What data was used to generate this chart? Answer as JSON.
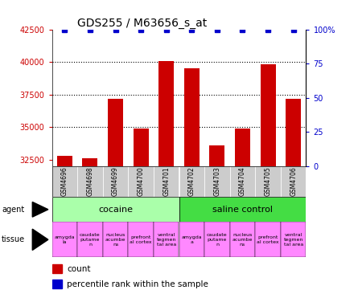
{
  "title": "GDS255 / M63656_s_at",
  "samples": [
    "GSM4696",
    "GSM4698",
    "GSM4699",
    "GSM4700",
    "GSM4701",
    "GSM4702",
    "GSM4703",
    "GSM4704",
    "GSM4705",
    "GSM4706"
  ],
  "counts": [
    32800,
    32600,
    37200,
    34900,
    40100,
    39500,
    33600,
    34900,
    39800,
    37200
  ],
  "percentiles": [
    100,
    100,
    100,
    100,
    100,
    100,
    100,
    100,
    100,
    100
  ],
  "ylim_left": [
    32000,
    42500
  ],
  "ylim_right": [
    0,
    100
  ],
  "yticks_left": [
    32500,
    35000,
    37500,
    40000,
    42500
  ],
  "yticks_right": [
    0,
    25,
    50,
    75,
    100
  ],
  "yticklabels_right": [
    "0",
    "25",
    "50",
    "75",
    "100%"
  ],
  "bar_color": "#cc0000",
  "percentile_color": "#0000cc",
  "cocaine_color": "#aaffaa",
  "saline_color": "#44dd44",
  "tissue_pink": "#ff88ff",
  "tissue_white": "#ffffff",
  "tissue_colors_per_col": [
    "#ff88ff",
    "#ff88ff",
    "#ff88ff",
    "#ff88ff",
    "#ff88ff",
    "#ff88ff",
    "#ff88ff",
    "#ff88ff",
    "#ff88ff",
    "#ff88ff"
  ],
  "bg_color": "#ffffff",
  "grid_color": "#000000",
  "tick_label_color_left": "#cc0000",
  "tick_label_color_right": "#0000cc",
  "sample_bg_color": "#cccccc",
  "tissues_cocaine": [
    "amygda\nla",
    "caudate\nputame\nn",
    "nucleus\nacumbe\nns",
    "prefront\nal cortex",
    "ventral\ntegmen\ntal area"
  ],
  "tissues_saline": [
    "amygda\na",
    "caudate\nputame\nn",
    "nucleus\nacumbe\nns",
    "prefront\nal cortex",
    "ventral\ntegmen\ntal area"
  ]
}
